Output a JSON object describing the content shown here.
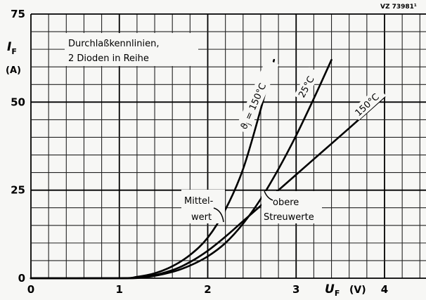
{
  "reference_code": "VZ 73981¹",
  "chart_data": {
    "type": "line",
    "title": "Durchlaßkennlinien,",
    "subtitle": "2 Dioden in Reihe",
    "ylabel_symbol": "I",
    "ylabel_subscript": "F",
    "ylabel_unit": "(A)",
    "xlabel_symbol": "U",
    "xlabel_subscript": "F",
    "xlabel_unit": "(V)",
    "xlim": [
      0,
      4.5
    ],
    "ylim": [
      0,
      75
    ],
    "x_ticks": [
      {
        "value": 0,
        "label": "0"
      },
      {
        "value": 1,
        "label": "1"
      },
      {
        "value": 2,
        "label": "2"
      },
      {
        "value": 3,
        "label": "3"
      },
      {
        "value": 4,
        "label": "4"
      }
    ],
    "y_ticks": [
      {
        "value": 0,
        "label": "0"
      },
      {
        "value": 25,
        "label": "25"
      },
      {
        "value": 50,
        "label": "50"
      },
      {
        "value": 75,
        "label": "75"
      }
    ],
    "grid": true,
    "series": [
      {
        "name": "ϑj = 150°C",
        "label_sub": "j",
        "label_prefix": "ϑ",
        "label_rest": " = 150°C",
        "x": [
          1.0,
          1.2,
          1.4,
          1.6,
          1.8,
          2.0,
          2.2,
          2.4,
          2.6,
          2.75
        ],
        "y": [
          0,
          0.4,
          1.4,
          3.4,
          6.6,
          11.5,
          19.5,
          31,
          48,
          62
        ]
      },
      {
        "name": "25°C",
        "x": [
          1.0,
          1.3,
          1.6,
          1.8,
          2.0,
          2.2,
          2.4,
          2.6,
          2.8,
          3.0,
          3.2,
          3.4
        ],
        "y": [
          0,
          0.3,
          1.8,
          3.6,
          6.2,
          10,
          15.5,
          22.5,
          31,
          40.5,
          51,
          62
        ]
      },
      {
        "name": "150°C",
        "x": [
          1.0,
          1.3,
          1.6,
          1.8,
          2.0,
          2.2,
          2.4,
          2.6,
          2.8,
          3.0,
          3.3,
          3.6,
          4.0
        ],
        "y": [
          0,
          0.4,
          2.3,
          4.6,
          7.8,
          11.8,
          16.2,
          20.6,
          25,
          29.4,
          36,
          42.6,
          51.5
        ]
      }
    ],
    "annotations": [
      {
        "text_lines": [
          "Mittel-",
          "wert"
        ]
      },
      {
        "text_lines": [
          "obere",
          "Streuwerte"
        ]
      }
    ]
  }
}
